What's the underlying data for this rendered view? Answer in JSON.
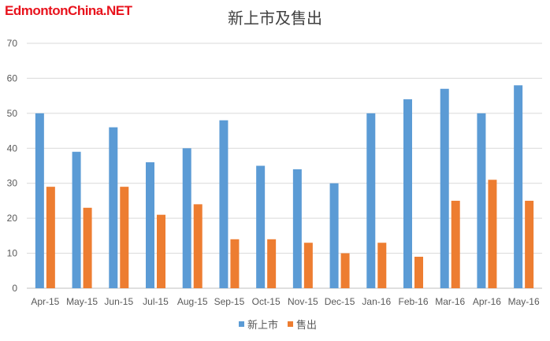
{
  "watermark": "EdmontonChina.NET",
  "chart_data": {
    "type": "bar",
    "title": "新上市及售出",
    "categories": [
      "Apr-15",
      "May-15",
      "Jun-15",
      "Jul-15",
      "Aug-15",
      "Sep-15",
      "Oct-15",
      "Nov-15",
      "Dec-15",
      "Jan-16",
      "Feb-16",
      "Mar-16",
      "Apr-16",
      "May-16"
    ],
    "series": [
      {
        "name": "新上市",
        "color": "#5b9bd5",
        "values": [
          50,
          39,
          46,
          36,
          40,
          48,
          35,
          34,
          30,
          50,
          54,
          57,
          50,
          58
        ]
      },
      {
        "name": "售出",
        "color": "#ed7d31",
        "values": [
          29,
          23,
          29,
          21,
          24,
          14,
          14,
          13,
          10,
          13,
          9,
          25,
          31,
          25
        ]
      }
    ],
    "ylim": [
      0,
      70
    ],
    "yticks": [
      0,
      10,
      20,
      30,
      40,
      50,
      60,
      70
    ],
    "grid": true,
    "legend": "bottom"
  }
}
